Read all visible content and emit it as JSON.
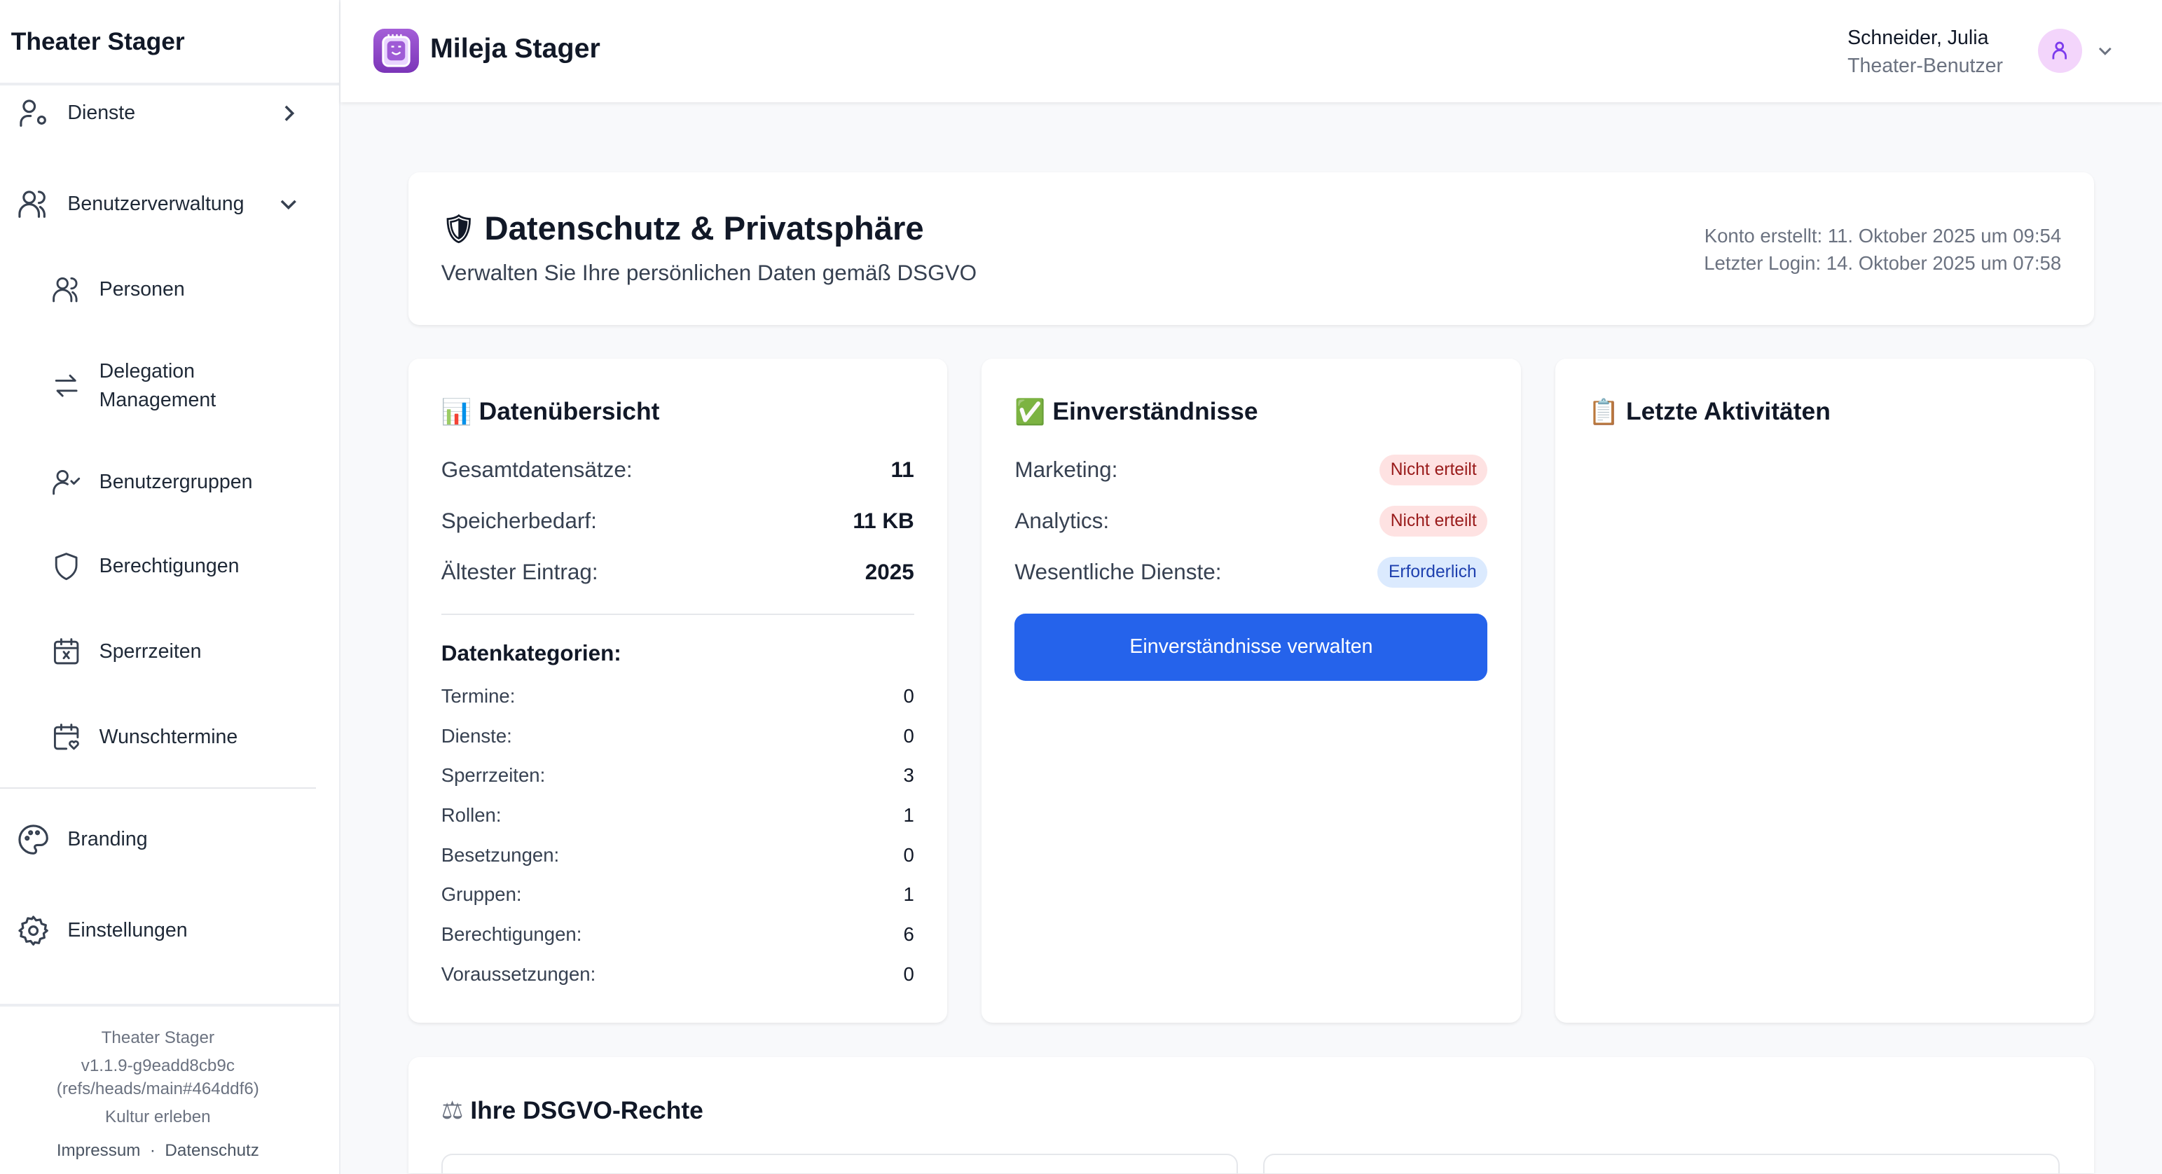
{
  "sidebar": {
    "title": "Theater Stager",
    "items": [
      {
        "label": "Dienste",
        "icon": "user-gear-icon",
        "state": "collapsed"
      },
      {
        "label": "Benutzerverwaltung",
        "icon": "users-icon",
        "state": "expanded"
      },
      {
        "label": "Personen",
        "icon": "users-icon"
      },
      {
        "label": "Delegation",
        "label2": "Management",
        "icon": "arrows-swap-icon"
      },
      {
        "label": "Benutzergruppen",
        "icon": "user-check-icon"
      },
      {
        "label": "Berechtigungen",
        "icon": "shield-icon"
      },
      {
        "label": "Sperrzeiten",
        "icon": "calendar-x-icon"
      },
      {
        "label": "Wunschtermine",
        "icon": "calendar-heart-icon"
      },
      {
        "label": "Branding",
        "icon": "palette-icon"
      },
      {
        "label": "Einstellungen",
        "icon": "gear-icon"
      }
    ],
    "footer": {
      "name": "Theater Stager",
      "version": "v1.1.9-g9eadd8cb9c",
      "ref": "(refs/heads/main#464ddf6)",
      "tagline": "Kultur erleben",
      "impressum": "Impressum",
      "separator": "·",
      "datenschutz": "Datenschutz"
    }
  },
  "header": {
    "brand": "Mileja Stager",
    "user_name": "Schneider, Julia",
    "user_role": "Theater-Benutzer",
    "accent": "#7b35b8"
  },
  "privacy": {
    "title": "Datenschutz & Privatsphäre",
    "title_icon": "🛡️",
    "subtitle": "Verwalten Sie Ihre persönlichen Daten gemäß DSGVO",
    "created": "Konto erstellt: 11. Oktober 2025 um 09:54",
    "last_login": "Letzter Login: 14. Oktober 2025 um 07:58"
  },
  "overview": {
    "title": "Datenübersicht",
    "icon": "📊",
    "stats": [
      {
        "label": "Gesamtdatensätze:",
        "value": "11"
      },
      {
        "label": "Speicherbedarf:",
        "value": "11 KB"
      },
      {
        "label": "Ältester Eintrag:",
        "value": "2025"
      }
    ],
    "categories_title": "Datenkategorien:",
    "categories": [
      {
        "label": "Termine:",
        "value": "0"
      },
      {
        "label": "Dienste:",
        "value": "0"
      },
      {
        "label": "Sperrzeiten:",
        "value": "3"
      },
      {
        "label": "Rollen:",
        "value": "1"
      },
      {
        "label": "Besetzungen:",
        "value": "0"
      },
      {
        "label": "Gruppen:",
        "value": "1"
      },
      {
        "label": "Berechtigungen:",
        "value": "6"
      },
      {
        "label": "Voraussetzungen:",
        "value": "0"
      }
    ]
  },
  "consents": {
    "title": "Einverständnisse",
    "icon": "✅",
    "items": [
      {
        "label": "Marketing:",
        "status": "Nicht erteilt",
        "tone": "red"
      },
      {
        "label": "Analytics:",
        "status": "Nicht erteilt",
        "tone": "red"
      },
      {
        "label": "Wesentliche Dienste:",
        "status": "Erforderlich",
        "tone": "blue"
      }
    ],
    "button": "Einverständnisse verwalten",
    "button_color": "#2563eb"
  },
  "activity": {
    "title": "Letzte Aktivitäten",
    "icon": "📋"
  },
  "rights": {
    "title": "Ihre DSGVO-Rechte",
    "icon": "⚖️"
  }
}
